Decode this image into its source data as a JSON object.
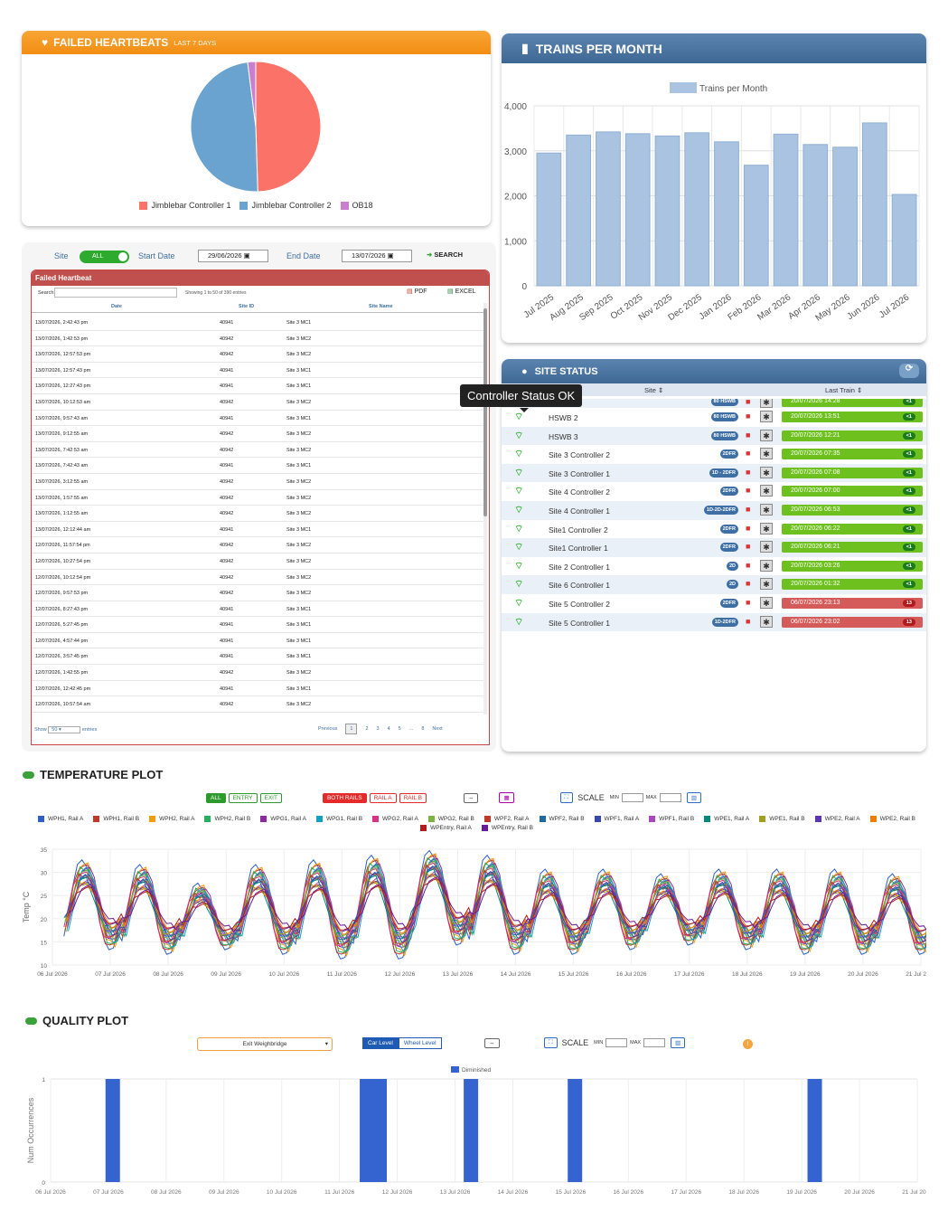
{
  "heartbeats": {
    "title": "FAILED HEARTBEATS",
    "subtitle": "LAST 7 DAYS",
    "legend": [
      {
        "label": "Jimblebar Controller 1",
        "color": "#fa7268"
      },
      {
        "label": "Jimblebar Controller 2",
        "color": "#6aa2d0"
      },
      {
        "label": "OB18",
        "color": "#c87fd0"
      }
    ],
    "chart_data": {
      "type": "pie",
      "labels": [
        "Jimblebar Controller 1",
        "Jimblebar Controller 2",
        "OB18"
      ],
      "values": [
        49.5,
        48.5,
        2.0
      ]
    }
  },
  "trains": {
    "title": "TRAINS PER MONTH",
    "chart_data": {
      "type": "bar",
      "categories": [
        "Jul 2025",
        "Aug 2025",
        "Sep 2025",
        "Oct 2025",
        "Nov 2025",
        "Dec 2025",
        "Jan 2026",
        "Feb 2026",
        "Mar 2026",
        "Apr 2026",
        "May 2026",
        "Jun 2026",
        "Jul 2026"
      ],
      "series": [
        {
          "name": "Trains per Month",
          "values": [
            2950,
            3350,
            3420,
            3380,
            3330,
            3400,
            3200,
            2680,
            3370,
            3140,
            3080,
            3620,
            2030
          ]
        }
      ],
      "ylim": [
        0,
        4000
      ],
      "yticks": [
        "0",
        "1,000",
        "2,000",
        "3,000",
        "4,000"
      ],
      "color": "#a9c3e0"
    }
  },
  "filter": {
    "site_label": "Site",
    "toggle": "ALL",
    "start_label": "Start Date",
    "start_value": "29/06/2026",
    "end_label": "End Date",
    "end_value": "13/07/2026",
    "search": "SEARCH"
  },
  "failed": {
    "title": "Failed Heartbeat",
    "search_label": "Search:",
    "showing": "Showing 1 to 50 of 390 entries",
    "pdf": "PDF",
    "excel": "EXCEL",
    "columns": [
      "Date",
      "Site ID",
      "Site Name"
    ],
    "rows": [
      [
        "13/07/2026, 2:42:43 pm",
        "40941",
        "Site 3 MC1"
      ],
      [
        "13/07/2026, 1:42:53 pm",
        "40942",
        "Site 3 MC2"
      ],
      [
        "13/07/2026, 12:57:53 pm",
        "40942",
        "Site 3 MC2"
      ],
      [
        "13/07/2026, 12:57:43 pm",
        "40941",
        "Site 3 MC1"
      ],
      [
        "13/07/2026, 12:27:43 pm",
        "40941",
        "Site 3 MC1"
      ],
      [
        "13/07/2026, 10:12:53 am",
        "40942",
        "Site 3 MC2"
      ],
      [
        "13/07/2026, 9:57:43 am",
        "40941",
        "Site 3 MC1"
      ],
      [
        "13/07/2026, 9:12:55 am",
        "40942",
        "Site 3 MC2"
      ],
      [
        "13/07/2026, 7:42:53 am",
        "40942",
        "Site 3 MC2"
      ],
      [
        "13/07/2026, 7:42:43 am",
        "40941",
        "Site 3 MC1"
      ],
      [
        "13/07/2026, 3:12:55 am",
        "40942",
        "Site 3 MC2"
      ],
      [
        "13/07/2026, 1:57:55 am",
        "40942",
        "Site 3 MC2"
      ],
      [
        "13/07/2026, 1:12:55 am",
        "40942",
        "Site 3 MC2"
      ],
      [
        "13/07/2026, 12:12:44 am",
        "40941",
        "Site 3 MC1"
      ],
      [
        "12/07/2026, 11:57:54 pm",
        "40942",
        "Site 3 MC2"
      ],
      [
        "12/07/2026, 10:27:54 pm",
        "40942",
        "Site 3 MC2"
      ],
      [
        "12/07/2026, 10:12:54 pm",
        "40942",
        "Site 3 MC2"
      ],
      [
        "12/07/2026, 9:57:53 pm",
        "40942",
        "Site 3 MC2"
      ],
      [
        "12/07/2026, 8:27:43 pm",
        "40941",
        "Site 3 MC1"
      ],
      [
        "12/07/2026, 5:27:45 pm",
        "40941",
        "Site 3 MC1"
      ],
      [
        "12/07/2026, 4:57:44 pm",
        "40941",
        "Site 3 MC1"
      ],
      [
        "12/07/2026, 3:57:45 pm",
        "40941",
        "Site 3 MC1"
      ],
      [
        "12/07/2026, 1:42:55 pm",
        "40942",
        "Site 3 MC2"
      ],
      [
        "12/07/2026, 12:42:45 pm",
        "40941",
        "Site 3 MC1"
      ],
      [
        "12/07/2026, 10:57:54 am",
        "40942",
        "Site 3 MC2"
      ]
    ],
    "show_label": "Show",
    "show_value": "50",
    "entries_label": "entries",
    "pager": [
      "Previous",
      "1",
      "2",
      "3",
      "4",
      "5",
      "...",
      "8",
      "Next"
    ]
  },
  "site_status": {
    "title": "SITE STATUS",
    "col_site": "Site",
    "col_last": "Last Train",
    "tooltip": "Controller Status OK",
    "rows": [
      {
        "name": "HSWB 1",
        "tag": "80 HSWB",
        "last": "20/07/2026 14:28",
        "badge": "<1",
        "ok": true
      },
      {
        "name": "HSWB 2",
        "tag": "80 HSWB",
        "last": "20/07/2026 13:51",
        "badge": "<1",
        "ok": true
      },
      {
        "name": "HSWB 3",
        "tag": "80 HSWB",
        "last": "20/07/2026 12:21",
        "badge": "<1",
        "ok": true
      },
      {
        "name": "Site 3 Controller 2",
        "tag": "2DFR",
        "last": "20/07/2026 07:35",
        "badge": "<1",
        "ok": true
      },
      {
        "name": "Site 3 Controller 1",
        "tag": "1D - 2DFR",
        "last": "20/07/2026 07:08",
        "badge": "<1",
        "ok": true
      },
      {
        "name": "Site 4 Controller 2",
        "tag": "2DFR",
        "last": "20/07/2026 07:00",
        "badge": "<1",
        "ok": true
      },
      {
        "name": "Site 4 Controller 1",
        "tag": "1D-2D-2DFR",
        "last": "20/07/2026 06:53",
        "badge": "<1",
        "ok": true
      },
      {
        "name": "Site1 Controller 2",
        "tag": "2DFR",
        "last": "20/07/2026 06:22",
        "badge": "<1",
        "ok": true
      },
      {
        "name": "Site1 Controller 1",
        "tag": "2DFR",
        "last": "20/07/2026 06:21",
        "badge": "<1",
        "ok": true
      },
      {
        "name": "Site 2 Controller 1",
        "tag": "2D",
        "last": "20/07/2026 03:26",
        "badge": "<1",
        "ok": true
      },
      {
        "name": "Site 6 Controller 1",
        "tag": "2D",
        "last": "20/07/2026 01:32",
        "badge": "<1",
        "ok": true
      },
      {
        "name": "Site 5 Controller 2",
        "tag": "2DFR",
        "last": "06/07/2026 23:13",
        "badge": "13",
        "ok": false
      },
      {
        "name": "Site 5 Controller 1",
        "tag": "1D-2DFR",
        "last": "06/07/2026 23:02",
        "badge": "13",
        "ok": false
      }
    ]
  },
  "temp": {
    "title": "TEMPERATURE PLOT",
    "btns": {
      "all": "ALL",
      "entry": "ENTRY",
      "exit": "EXIT",
      "both": "BOTH RAILS",
      "raila": "RAIL A",
      "railb": "RAIL B",
      "scale": "SCALE",
      "min": "MIN",
      "max": "MAX"
    },
    "series_legend": [
      {
        "name": "WPH1, Rail A",
        "color": "#2f5fc4"
      },
      {
        "name": "WPH1, Rail B",
        "color": "#c0392b"
      },
      {
        "name": "WPH2, Rail A",
        "color": "#f39c12"
      },
      {
        "name": "WPH2, Rail B",
        "color": "#27ae60"
      },
      {
        "name": "WPG1, Rail A",
        "color": "#8e2aa0"
      },
      {
        "name": "WPG1, Rail B",
        "color": "#16a0c0"
      },
      {
        "name": "WPG2, Rail A",
        "color": "#d63384"
      },
      {
        "name": "WPG2, Rail B",
        "color": "#7cb342"
      },
      {
        "name": "WPF2, Rail A",
        "color": "#c0392b"
      },
      {
        "name": "WPF2, Rail B",
        "color": "#1f6aa5"
      },
      {
        "name": "WPF1, Rail A",
        "color": "#3949ab"
      },
      {
        "name": "WPF1, Rail B",
        "color": "#ab47bc"
      },
      {
        "name": "WPE1, Rail A",
        "color": "#00897b"
      },
      {
        "name": "WPE1, Rail B",
        "color": "#a0a020"
      },
      {
        "name": "WPE2, Rail A",
        "color": "#5e35b1"
      },
      {
        "name": "WPE2, Rail B",
        "color": "#f57c00"
      },
      {
        "name": "WPEntry, Rail A",
        "color": "#b71c1c"
      },
      {
        "name": "WPEntry, Rail B",
        "color": "#6a1b9a"
      }
    ],
    "chart_data": {
      "type": "line",
      "ylabel": "Temp °C",
      "ylim": [
        10,
        35
      ],
      "yticks": [
        "10",
        "15",
        "20",
        "25",
        "30",
        "35"
      ],
      "xticks": [
        "06 Jul 2026",
        "07 Jul 2026",
        "08 Jul 2026",
        "09 Jul 2026",
        "10 Jul 2026",
        "11 Jul 2026",
        "12 Jul 2026",
        "13 Jul 2026",
        "14 Jul 2026",
        "15 Jul 2026",
        "16 Jul 2026",
        "17 Jul 2026",
        "18 Jul 2026",
        "19 Jul 2026",
        "20 Jul 2026",
        "21 Jul 2026"
      ],
      "daily_peaks": [
        32,
        31,
        27,
        31,
        32,
        33,
        34,
        33,
        30,
        30,
        29,
        30,
        30,
        30,
        29
      ],
      "daily_lows": [
        14,
        13,
        14,
        13,
        12,
        12,
        15,
        13,
        13,
        14,
        15,
        14,
        13,
        13,
        13
      ]
    }
  },
  "quality": {
    "title": "QUALITY PLOT",
    "select": "Exit Weighbridge",
    "car_level": "Car Level",
    "wheel_level": "Wheel Level",
    "scale": "SCALE",
    "min": "MIN",
    "max": "MAX",
    "chart_data": {
      "type": "bar",
      "ylabel": "Num Occurrences",
      "series": [
        {
          "name": "Diminished",
          "color": "#3563cf"
        }
      ],
      "ylim": [
        0,
        1
      ],
      "yticks": [
        "0",
        "1"
      ],
      "xticks": [
        "06 Jul 2026",
        "07 Jul 2026",
        "08 Jul 2026",
        "09 Jul 2026",
        "10 Jul 2026",
        "11 Jul 2026",
        "12 Jul 2026",
        "13 Jul 2026",
        "14 Jul 2026",
        "15 Jul 2026",
        "16 Jul 2026",
        "17 Jul 2026",
        "18 Jul 2026",
        "19 Jul 2026",
        "20 Jul 2026",
        "21 Jul 2026"
      ],
      "bars": [
        {
          "day": 0.95,
          "value": 1
        },
        {
          "day": 5.35,
          "value": 1
        },
        {
          "day": 7.15,
          "value": 1
        },
        {
          "day": 8.95,
          "value": 1
        },
        {
          "day": 13.1,
          "value": 1
        }
      ]
    }
  }
}
